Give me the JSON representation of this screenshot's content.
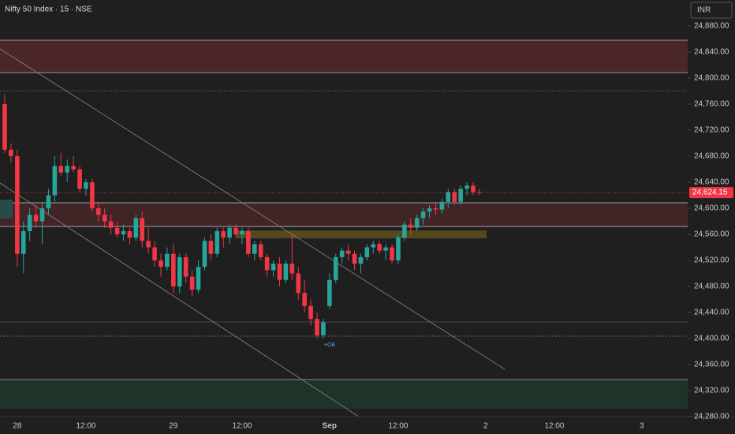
{
  "chart_data": {
    "type": "candlestick",
    "title": "Nifty 50 Index · 15 · NSE",
    "currency": "INR",
    "annotation": "+OB",
    "up_color": "#26a69a",
    "down_color": "#f23645",
    "categories": [
      null,
      null,
      "28",
      null,
      null,
      null,
      null,
      null,
      null,
      null,
      null,
      null,
      null,
      "12:00",
      null,
      null,
      null,
      null,
      null,
      null,
      null,
      null,
      null,
      null,
      null,
      null,
      null,
      "29",
      null,
      null,
      null,
      null,
      null,
      null,
      null,
      null,
      null,
      null,
      "12:00",
      null,
      null,
      null,
      null,
      null,
      null,
      null,
      null,
      null,
      null,
      null,
      null,
      null,
      "Sep",
      null,
      null,
      null,
      null,
      null,
      null,
      null,
      null,
      null,
      null,
      "12:00",
      null,
      null,
      null,
      null,
      null,
      null,
      null,
      null,
      null,
      null,
      null,
      null,
      null,
      "2",
      null,
      null,
      null,
      null,
      null,
      null,
      null,
      null,
      null,
      null,
      "12:00",
      null,
      null,
      null,
      null,
      null,
      null,
      null,
      null,
      null,
      null,
      null,
      null,
      null,
      "3"
    ],
    "open": [
      24760,
      24690,
      24680,
      24530,
      24565,
      24590,
      24580,
      24600,
      24620,
      24665,
      24655,
      24665,
      24660,
      24630,
      24640,
      24600,
      24590,
      24580,
      24570,
      24560,
      24565,
      24555,
      24585,
      24550,
      24540,
      24520,
      24510,
      24530,
      24480,
      24525,
      24495,
      24475,
      24510,
      24550,
      24530,
      24565,
      24555,
      24570,
      24560,
      24565,
      24530,
      24545,
      24525,
      24505,
      24515,
      24490,
      24515,
      24500,
      24470,
      24450,
      24430,
      24405,
      24450,
      24490,
      24525,
      24535,
      24530,
      24515,
      24525,
      24540,
      24545,
      24535,
      24540,
      24520,
      24555,
      24575,
      24570,
      24585,
      24595,
      24600,
      24598,
      24610,
      24625,
      24610,
      24630,
      24635,
      24625,
      null,
      null,
      null,
      null,
      null,
      null,
      null,
      null,
      null,
      null,
      null,
      null,
      null,
      null,
      null,
      null,
      null,
      null,
      null,
      null,
      null,
      null,
      null,
      null,
      null,
      null
    ],
    "high": [
      24775,
      24700,
      24690,
      24580,
      24600,
      24605,
      24610,
      24630,
      24680,
      24685,
      24675,
      24680,
      24665,
      24645,
      24645,
      24610,
      24600,
      24590,
      24580,
      24575,
      24570,
      24590,
      24595,
      24570,
      24550,
      24530,
      24540,
      24545,
      24530,
      24530,
      24505,
      24520,
      24555,
      24560,
      24570,
      24570,
      24575,
      24575,
      24570,
      24570,
      24550,
      24550,
      24530,
      24520,
      24525,
      24520,
      24560,
      24510,
      24490,
      24460,
      24440,
      24430,
      24500,
      24530,
      24540,
      24545,
      24535,
      24530,
      24545,
      24550,
      24550,
      24545,
      24545,
      24560,
      24580,
      24585,
      24590,
      24600,
      24605,
      24610,
      24615,
      24630,
      24630,
      24635,
      24640,
      24640,
      24630,
      null,
      null,
      null,
      null,
      null,
      null,
      null,
      null,
      null,
      null,
      null,
      null,
      null,
      null,
      null,
      null,
      null,
      null,
      null,
      null,
      null,
      null,
      null,
      null,
      null,
      null
    ],
    "low": [
      24685,
      24670,
      24510,
      24500,
      24550,
      24570,
      24545,
      24590,
      24610,
      24650,
      24640,
      24655,
      24625,
      24620,
      24595,
      24580,
      24570,
      24560,
      24555,
      24550,
      24545,
      24550,
      24540,
      24530,
      24510,
      24495,
      24505,
      24470,
      24470,
      24485,
      24465,
      24470,
      24505,
      24520,
      24525,
      24540,
      24545,
      24555,
      24545,
      24525,
      24520,
      24520,
      24495,
      24495,
      24480,
      24485,
      24490,
      24460,
      24440,
      24420,
      24400,
      24400,
      24445,
      24485,
      24515,
      24520,
      24505,
      24500,
      24520,
      24530,
      24530,
      24520,
      24515,
      24515,
      24550,
      24560,
      24565,
      24575,
      24585,
      24590,
      24592,
      24600,
      24605,
      24605,
      24620,
      24620,
      24620,
      null,
      null,
      null,
      null,
      null,
      null,
      null,
      null,
      null,
      null,
      null,
      null,
      null,
      null,
      null,
      null,
      null,
      null,
      null,
      null,
      null,
      null,
      null,
      null,
      null,
      null
    ],
    "close": [
      24690,
      24680,
      24530,
      24565,
      24590,
      24580,
      24600,
      24620,
      24665,
      24655,
      24665,
      24660,
      24630,
      24640,
      24600,
      24590,
      24580,
      24570,
      24560,
      24565,
      24555,
      24585,
      24550,
      24540,
      24520,
      24510,
      24530,
      24480,
      24525,
      24495,
      24475,
      24510,
      24550,
      24530,
      24565,
      24555,
      24570,
      24560,
      24565,
      24530,
      24545,
      24525,
      24505,
      24515,
      24490,
      24515,
      24500,
      24470,
      24450,
      24430,
      24405,
      24425,
      24490,
      24525,
      24535,
      24530,
      24515,
      24525,
      24540,
      24545,
      24535,
      24540,
      24520,
      24555,
      24575,
      24570,
      24585,
      24595,
      24600,
      24598,
      24610,
      24625,
      24610,
      24630,
      24635,
      24625,
      24624.15,
      null,
      null,
      null,
      null,
      null,
      null,
      null,
      null,
      null,
      null,
      null,
      null,
      null,
      null,
      null,
      null,
      null,
      null,
      null,
      null,
      null,
      null,
      null,
      null,
      null,
      null
    ],
    "last_price": {
      "value": 24624.15,
      "label": "24,624.15"
    },
    "ylim": [
      24280,
      24920
    ],
    "yticks": [
      {
        "value": 24280,
        "label": "24,280.00"
      },
      {
        "value": 24320,
        "label": "24,320.00"
      },
      {
        "value": 24360,
        "label": "24,360.00"
      },
      {
        "value": 24400,
        "label": "24,400.00"
      },
      {
        "value": 24440,
        "label": "24,440.00"
      },
      {
        "value": 24480,
        "label": "24,480.00"
      },
      {
        "value": 24520,
        "label": "24,520.00"
      },
      {
        "value": 24560,
        "label": "24,560.00"
      },
      {
        "value": 24600,
        "label": "24,600.00"
      },
      {
        "value": 24640,
        "label": "24,640.00"
      },
      {
        "value": 24680,
        "label": "24,680.00"
      },
      {
        "value": 24720,
        "label": "24,720.00"
      },
      {
        "value": 24760,
        "label": "24,760.00"
      },
      {
        "value": 24800,
        "label": "24,800.00"
      },
      {
        "value": 24840,
        "label": "24,840.00"
      },
      {
        "value": 24880,
        "label": "24,880.00"
      }
    ],
    "grid": false
  }
}
